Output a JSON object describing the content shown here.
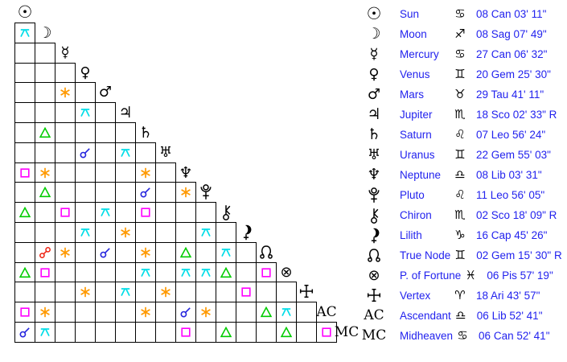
{
  "colors": {
    "background": "#ffffff",
    "grid_line": "#000000",
    "glyph": "#000000",
    "legend_text": "#2222ee",
    "aspect": {
      "conjunction": "#2424dd",
      "opposition": "#ee2211",
      "square": "#ff00ff",
      "trine": "#00cc00",
      "sextile": "#ff9900",
      "quincunx": "#00dde8"
    }
  },
  "grid": {
    "header": {
      "planet": "Sun",
      "glyph": "sun"
    },
    "columns": [
      "Sun",
      "Moon",
      "Mercury",
      "Venus",
      "Mars",
      "Jupiter",
      "Saturn",
      "Uranus",
      "Neptune",
      "Pluto",
      "Chiron",
      "Lilith",
      "True Node",
      "P. of Fortune",
      "Vertex",
      "Ascendant"
    ],
    "rows": [
      {
        "planet": "Moon",
        "glyph": "moon",
        "aspects": [
          {
            "col": 1,
            "type": "quincunx"
          }
        ]
      },
      {
        "planet": "Mercury",
        "glyph": "mercury",
        "aspects": []
      },
      {
        "planet": "Venus",
        "glyph": "venus",
        "aspects": []
      },
      {
        "planet": "Mars",
        "glyph": "mars",
        "aspects": [
          {
            "col": 3,
            "type": "sextile"
          }
        ]
      },
      {
        "planet": "Jupiter",
        "glyph": "jupiter",
        "aspects": [
          {
            "col": 4,
            "type": "quincunx"
          }
        ]
      },
      {
        "planet": "Saturn",
        "glyph": "saturn",
        "aspects": [
          {
            "col": 2,
            "type": "trine"
          }
        ]
      },
      {
        "planet": "Uranus",
        "glyph": "uranus",
        "aspects": [
          {
            "col": 4,
            "type": "conjunction"
          },
          {
            "col": 6,
            "type": "quincunx"
          }
        ]
      },
      {
        "planet": "Neptune",
        "glyph": "neptune",
        "aspects": [
          {
            "col": 1,
            "type": "square"
          },
          {
            "col": 2,
            "type": "sextile"
          },
          {
            "col": 7,
            "type": "sextile"
          }
        ]
      },
      {
        "planet": "Pluto",
        "glyph": "pluto",
        "aspects": [
          {
            "col": 2,
            "type": "trine"
          },
          {
            "col": 7,
            "type": "conjunction"
          },
          {
            "col": 9,
            "type": "sextile"
          }
        ]
      },
      {
        "planet": "Chiron",
        "glyph": "chiron",
        "aspects": [
          {
            "col": 1,
            "type": "trine"
          },
          {
            "col": 3,
            "type": "square"
          },
          {
            "col": 5,
            "type": "quincunx"
          },
          {
            "col": 7,
            "type": "square"
          }
        ]
      },
      {
        "planet": "Lilith",
        "glyph": "lilith",
        "aspects": [
          {
            "col": 4,
            "type": "quincunx"
          },
          {
            "col": 6,
            "type": "sextile"
          },
          {
            "col": 10,
            "type": "quincunx"
          }
        ]
      },
      {
        "planet": "True Node",
        "glyph": "node",
        "aspects": [
          {
            "col": 2,
            "type": "opposition"
          },
          {
            "col": 3,
            "type": "sextile"
          },
          {
            "col": 5,
            "type": "conjunction"
          },
          {
            "col": 7,
            "type": "sextile"
          },
          {
            "col": 9,
            "type": "trine"
          },
          {
            "col": 11,
            "type": "quincunx"
          }
        ]
      },
      {
        "planet": "P. of Fortune",
        "glyph": "fortune",
        "aspects": [
          {
            "col": 1,
            "type": "trine"
          },
          {
            "col": 2,
            "type": "square"
          },
          {
            "col": 7,
            "type": "quincunx"
          },
          {
            "col": 9,
            "type": "quincunx"
          },
          {
            "col": 10,
            "type": "quincunx"
          },
          {
            "col": 11,
            "type": "trine"
          },
          {
            "col": 13,
            "type": "square"
          }
        ]
      },
      {
        "planet": "Vertex",
        "glyph": "vertex",
        "aspects": [
          {
            "col": 4,
            "type": "sextile"
          },
          {
            "col": 6,
            "type": "quincunx"
          },
          {
            "col": 8,
            "type": "sextile"
          },
          {
            "col": 12,
            "type": "square"
          }
        ]
      },
      {
        "planet": "Ascendant",
        "glyph": "ac",
        "label": "AC",
        "aspects": [
          {
            "col": 1,
            "type": "square"
          },
          {
            "col": 2,
            "type": "sextile"
          },
          {
            "col": 7,
            "type": "sextile"
          },
          {
            "col": 9,
            "type": "conjunction"
          },
          {
            "col": 10,
            "type": "sextile"
          },
          {
            "col": 13,
            "type": "trine"
          },
          {
            "col": 14,
            "type": "quincunx"
          }
        ]
      },
      {
        "planet": "Midheaven",
        "glyph": "mc",
        "label": "MC",
        "aspects": [
          {
            "col": 1,
            "type": "conjunction"
          },
          {
            "col": 2,
            "type": "quincunx"
          },
          {
            "col": 9,
            "type": "square"
          },
          {
            "col": 11,
            "type": "trine"
          },
          {
            "col": 14,
            "type": "trine"
          },
          {
            "col": 16,
            "type": "square"
          }
        ]
      }
    ]
  },
  "legend": {
    "rows": [
      {
        "name": "Sun",
        "glyph": "sun",
        "sign": "Cancer",
        "sign_glyph": "♋",
        "position": "08 Can 03' 11\""
      },
      {
        "name": "Moon",
        "glyph": "moon",
        "sign": "Sagittarius",
        "sign_glyph": "♐",
        "position": "08 Sag 07' 49\""
      },
      {
        "name": "Mercury",
        "glyph": "mercury",
        "sign": "Cancer",
        "sign_glyph": "♋",
        "position": "27 Can 06' 32\""
      },
      {
        "name": "Venus",
        "glyph": "venus",
        "sign": "Gemini",
        "sign_glyph": "♊",
        "position": "20 Gem 25' 30\""
      },
      {
        "name": "Mars",
        "glyph": "mars",
        "sign": "Taurus",
        "sign_glyph": "♉",
        "position": "29 Tau 41' 11\""
      },
      {
        "name": "Jupiter",
        "glyph": "jupiter",
        "sign": "Scorpio",
        "sign_glyph": "♏",
        "position": "18 Sco 02' 33\" R"
      },
      {
        "name": "Saturn",
        "glyph": "saturn",
        "sign": "Leo",
        "sign_glyph": "♌",
        "position": "07 Leo 56' 24\""
      },
      {
        "name": "Uranus",
        "glyph": "uranus",
        "sign": "Gemini",
        "sign_glyph": "♊",
        "position": "22 Gem 55' 03\""
      },
      {
        "name": "Neptune",
        "glyph": "neptune",
        "sign": "Libra",
        "sign_glyph": "♎",
        "position": "08 Lib 03' 31\""
      },
      {
        "name": "Pluto",
        "glyph": "pluto",
        "sign": "Leo",
        "sign_glyph": "♌",
        "position": "11 Leo 56' 05\""
      },
      {
        "name": "Chiron",
        "glyph": "chiron",
        "sign": "Scorpio",
        "sign_glyph": "♏",
        "position": "02 Sco 18' 09\" R"
      },
      {
        "name": "Lilith",
        "glyph": "lilith",
        "sign": "Capricorn",
        "sign_glyph": "♑",
        "position": "16 Cap 45' 26\""
      },
      {
        "name": "True Node",
        "glyph": "node",
        "sign": "Gemini",
        "sign_glyph": "♊",
        "position": "02 Gem 15' 30\" R"
      },
      {
        "name": "P. of Fortune",
        "glyph": "fortune",
        "sign": "Pisces",
        "sign_glyph": "♓",
        "position": "06 Pis 57' 19\""
      },
      {
        "name": "Vertex",
        "glyph": "vertex",
        "sign": "Aries",
        "sign_glyph": "♈",
        "position": "18 Ari 43' 57\""
      },
      {
        "name": "Ascendant",
        "glyph": "ac",
        "sign": "Libra",
        "sign_glyph": "♎",
        "position": "06 Lib 52' 41\""
      },
      {
        "name": "Midheaven",
        "glyph": "mc",
        "sign": "Cancer",
        "sign_glyph": "♋",
        "position": "06 Can 52' 41\""
      }
    ]
  }
}
